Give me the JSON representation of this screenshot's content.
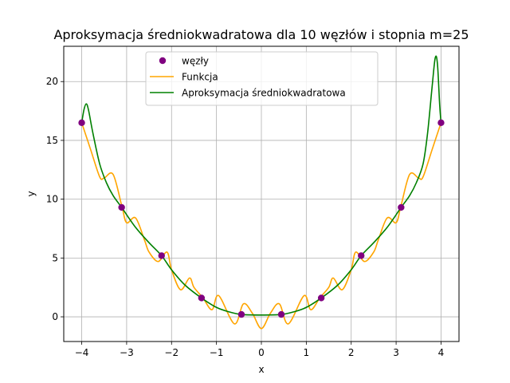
{
  "chart_data": {
    "type": "line",
    "title": "Aproksymacja średniokwadratowa dla 10 węzłów i stopnia m=25",
    "xlabel": "x",
    "ylabel": "y",
    "xlim": [
      -4.4,
      4.4
    ],
    "ylim": [
      -2.1,
      23.0
    ],
    "xticks": [
      -4,
      -3,
      -2,
      -1,
      0,
      1,
      2,
      3,
      4
    ],
    "xtick_labels": [
      "−4",
      "−3",
      "−2",
      "−1",
      "0",
      "1",
      "2",
      "3",
      "4"
    ],
    "yticks": [
      0,
      5,
      10,
      15,
      20
    ],
    "ytick_labels": [
      "0",
      "5",
      "10",
      "15",
      "20"
    ],
    "grid": true,
    "legend_position": "top-center",
    "series": [
      {
        "name": "węzły",
        "kind": "scatter",
        "color": "#800080",
        "x": [
          -4.0,
          -3.111,
          -2.222,
          -1.333,
          -0.444,
          0.444,
          1.333,
          2.222,
          3.111,
          4.0
        ],
        "y": [
          16.5,
          9.3,
          5.2,
          1.6,
          0.2,
          0.2,
          1.6,
          5.2,
          9.3,
          16.5
        ]
      },
      {
        "name": "Funkcja",
        "kind": "line",
        "color": "#ffa500",
        "x": [
          -4.0,
          -3.8,
          -3.6,
          -3.5,
          -3.3,
          -3.1,
          -3.0,
          -2.8,
          -2.6,
          -2.5,
          -2.3,
          -2.1,
          -2.0,
          -1.8,
          -1.6,
          -1.5,
          -1.3,
          -1.1,
          -0.95,
          -0.6,
          -0.4,
          -0.2,
          0.0,
          0.2,
          0.4,
          0.6,
          0.95,
          1.1,
          1.3,
          1.5,
          1.6,
          1.8,
          2.0,
          2.1,
          2.3,
          2.5,
          2.6,
          2.8,
          3.0,
          3.1,
          3.3,
          3.5,
          3.6,
          3.8,
          4.0
        ],
        "y": [
          16.5,
          14.2,
          11.9,
          11.8,
          12.1,
          9.3,
          8.0,
          8.4,
          6.5,
          5.5,
          4.7,
          5.5,
          4.0,
          2.3,
          3.3,
          2.5,
          1.6,
          0.6,
          1.8,
          -0.6,
          1.1,
          0.3,
          -1.0,
          0.3,
          1.1,
          -0.6,
          1.8,
          0.6,
          1.6,
          2.5,
          3.3,
          2.3,
          4.0,
          5.5,
          4.7,
          5.5,
          6.5,
          8.4,
          8.0,
          9.3,
          12.1,
          11.8,
          11.9,
          14.2,
          16.5
        ]
      },
      {
        "name": "Aproksymacja średniokwadratowa",
        "kind": "line",
        "color": "#008000",
        "x": [
          -4.0,
          -3.95,
          -3.9,
          -3.85,
          -3.75,
          -3.6,
          -3.45,
          -3.3,
          -3.111,
          -2.8,
          -2.5,
          -2.222,
          -2.0,
          -1.7,
          -1.333,
          -1.0,
          -0.7,
          -0.444,
          0.0,
          0.444,
          0.7,
          1.0,
          1.333,
          1.7,
          2.0,
          2.222,
          2.5,
          2.8,
          3.111,
          3.3,
          3.45,
          3.6,
          3.7,
          3.8,
          3.87,
          3.92,
          3.97,
          4.0
        ],
        "y": [
          16.5,
          17.6,
          18.1,
          17.6,
          15.6,
          13.0,
          11.4,
          10.3,
          9.3,
          7.6,
          6.3,
          5.2,
          4.0,
          2.7,
          1.6,
          0.8,
          0.4,
          0.2,
          0.15,
          0.2,
          0.4,
          0.8,
          1.6,
          2.7,
          4.0,
          5.2,
          6.3,
          7.6,
          9.3,
          10.3,
          11.4,
          13.0,
          15.6,
          19.5,
          22.0,
          21.5,
          18.0,
          16.5
        ]
      }
    ]
  }
}
